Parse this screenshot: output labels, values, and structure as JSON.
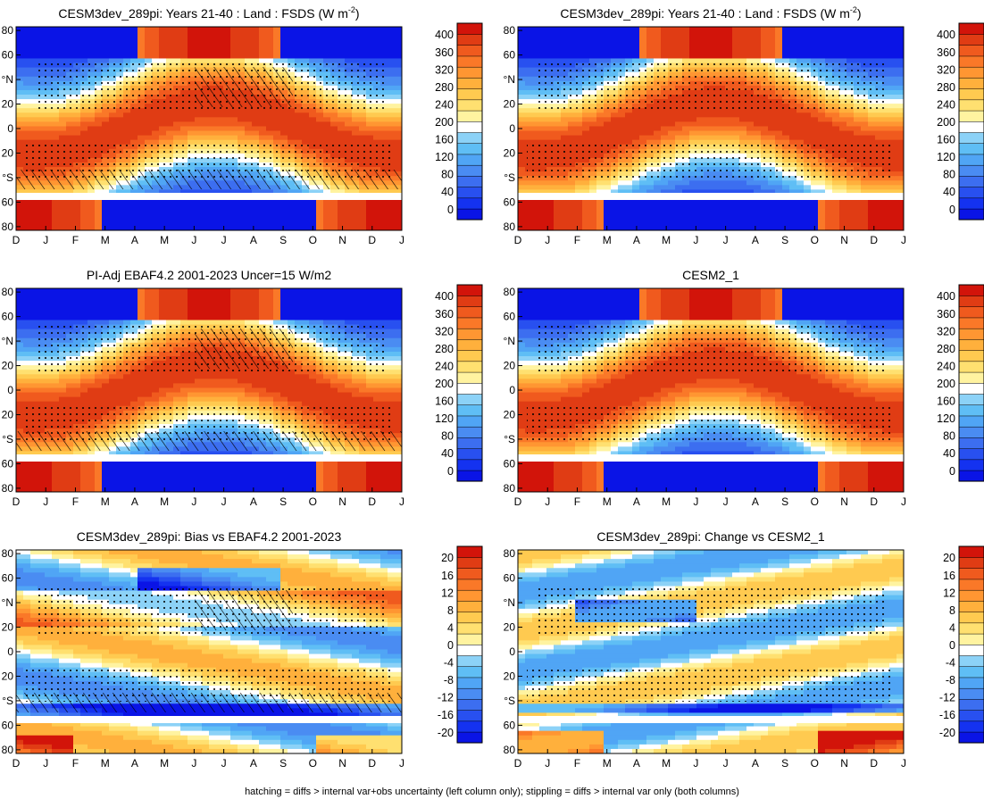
{
  "footer": "hatching = diffs > internal var+obs uncertainty (left column only); stippling = diffs > internal var only (both columns)",
  "colors": {
    "abs_scale": [
      "#0a14e6",
      "#1432f0",
      "#2850f0",
      "#3c6ef0",
      "#4a8cf2",
      "#50a5f5",
      "#5fbef5",
      "#8cd2f7",
      "#ffffff",
      "#fff3a0",
      "#ffe070",
      "#ffca50",
      "#ffb03c",
      "#ff9632",
      "#fa7828",
      "#f05a1e",
      "#e03c14",
      "#d2140a"
    ],
    "diff_scale": [
      "#0a14e6",
      "#1432f0",
      "#2850f0",
      "#3c6ef0",
      "#4a8cf2",
      "#50a5f5",
      "#5fbef5",
      "#8cd2f7",
      "#ffffff",
      "#fff3a0",
      "#ffe070",
      "#ffca50",
      "#ffb03c",
      "#ff9632",
      "#fa7828",
      "#f05a1e",
      "#e03c14",
      "#d2140a"
    ]
  },
  "chart_data": [
    {
      "type": "heatmap",
      "title": "CESM3dev_289pi: Years 21-40 : Land : FSDS (W m",
      "title_sup": "-2",
      "title_end": ")",
      "x_ticks": [
        "D",
        "J",
        "F",
        "M",
        "A",
        "M",
        "J",
        "J",
        "A",
        "S",
        "O",
        "N",
        "D",
        "J"
      ],
      "y_ticks": [
        "80",
        "60",
        "°N",
        "20",
        "0",
        "20",
        "°S",
        "60",
        "80"
      ],
      "y_range": [
        -90,
        90
      ],
      "colorbar": [
        "400",
        "360",
        "320",
        "280",
        "240",
        "200",
        "160",
        "120",
        "80",
        "40",
        "0"
      ],
      "hatching": true,
      "stippling": true,
      "variant": "abs"
    },
    {
      "type": "heatmap",
      "title": "CESM3dev_289pi: Years 21-40 : Land : FSDS (W m",
      "title_sup": "-2",
      "title_end": ")",
      "x_ticks": [
        "D",
        "J",
        "F",
        "M",
        "A",
        "M",
        "J",
        "J",
        "A",
        "S",
        "O",
        "N",
        "D",
        "J"
      ],
      "y_ticks": [
        "80",
        "60",
        "°N",
        "20",
        "0",
        "20",
        "°S",
        "60",
        "80"
      ],
      "y_range": [
        -90,
        90
      ],
      "colorbar": [
        "400",
        "360",
        "320",
        "280",
        "240",
        "200",
        "160",
        "120",
        "80",
        "40",
        "0"
      ],
      "hatching": false,
      "stippling": true,
      "variant": "abs"
    },
    {
      "type": "heatmap",
      "title": "PI-Adj EBAF4.2 2001-2023 Uncer=15 W/m2",
      "title_sup": "",
      "title_end": "",
      "x_ticks": [
        "D",
        "J",
        "F",
        "M",
        "A",
        "M",
        "J",
        "J",
        "A",
        "S",
        "O",
        "N",
        "D",
        "J"
      ],
      "y_ticks": [
        "80",
        "60",
        "°N",
        "20",
        "0",
        "20",
        "°S",
        "60",
        "80"
      ],
      "y_range": [
        -90,
        90
      ],
      "colorbar": [
        "400",
        "360",
        "320",
        "280",
        "240",
        "200",
        "160",
        "120",
        "80",
        "40",
        "0"
      ],
      "hatching": true,
      "stippling": true,
      "variant": "abs"
    },
    {
      "type": "heatmap",
      "title": "CESM2_1",
      "title_sup": "",
      "title_end": "",
      "x_ticks": [
        "D",
        "J",
        "F",
        "M",
        "A",
        "M",
        "J",
        "J",
        "A",
        "S",
        "O",
        "N",
        "D",
        "J"
      ],
      "y_ticks": [
        "80",
        "60",
        "°N",
        "20",
        "0",
        "20",
        "°S",
        "60",
        "80"
      ],
      "y_range": [
        -90,
        90
      ],
      "colorbar": [
        "400",
        "360",
        "320",
        "280",
        "240",
        "200",
        "160",
        "120",
        "80",
        "40",
        "0"
      ],
      "hatching": false,
      "stippling": true,
      "variant": "abs"
    },
    {
      "type": "heatmap",
      "title": "CESM3dev_289pi: Bias vs EBAF4.2 2001-2023",
      "title_sup": "",
      "title_end": "",
      "x_ticks": [
        "D",
        "J",
        "F",
        "M",
        "A",
        "M",
        "J",
        "J",
        "A",
        "S",
        "O",
        "N",
        "D",
        "J"
      ],
      "y_ticks": [
        "80",
        "60",
        "°N",
        "20",
        "0",
        "20",
        "°S",
        "60",
        "80"
      ],
      "y_range": [
        -90,
        90
      ],
      "colorbar": [
        "20",
        "16",
        "12",
        "8",
        "4",
        "0",
        "-4",
        "-8",
        "-12",
        "-16",
        "-20"
      ],
      "hatching": true,
      "stippling": true,
      "variant": "bias"
    },
    {
      "type": "heatmap",
      "title": "CESM3dev_289pi: Change vs CESM2_1",
      "title_sup": "",
      "title_end": "",
      "x_ticks": [
        "D",
        "J",
        "F",
        "M",
        "A",
        "M",
        "J",
        "J",
        "A",
        "S",
        "O",
        "N",
        "D",
        "J"
      ],
      "y_ticks": [
        "80",
        "60",
        "°N",
        "20",
        "0",
        "20",
        "°S",
        "60",
        "80"
      ],
      "y_range": [
        -90,
        90
      ],
      "colorbar": [
        "20",
        "16",
        "12",
        "8",
        "4",
        "0",
        "-4",
        "-8",
        "-12",
        "-16",
        "-20"
      ],
      "hatching": false,
      "stippling": true,
      "variant": "change"
    }
  ]
}
